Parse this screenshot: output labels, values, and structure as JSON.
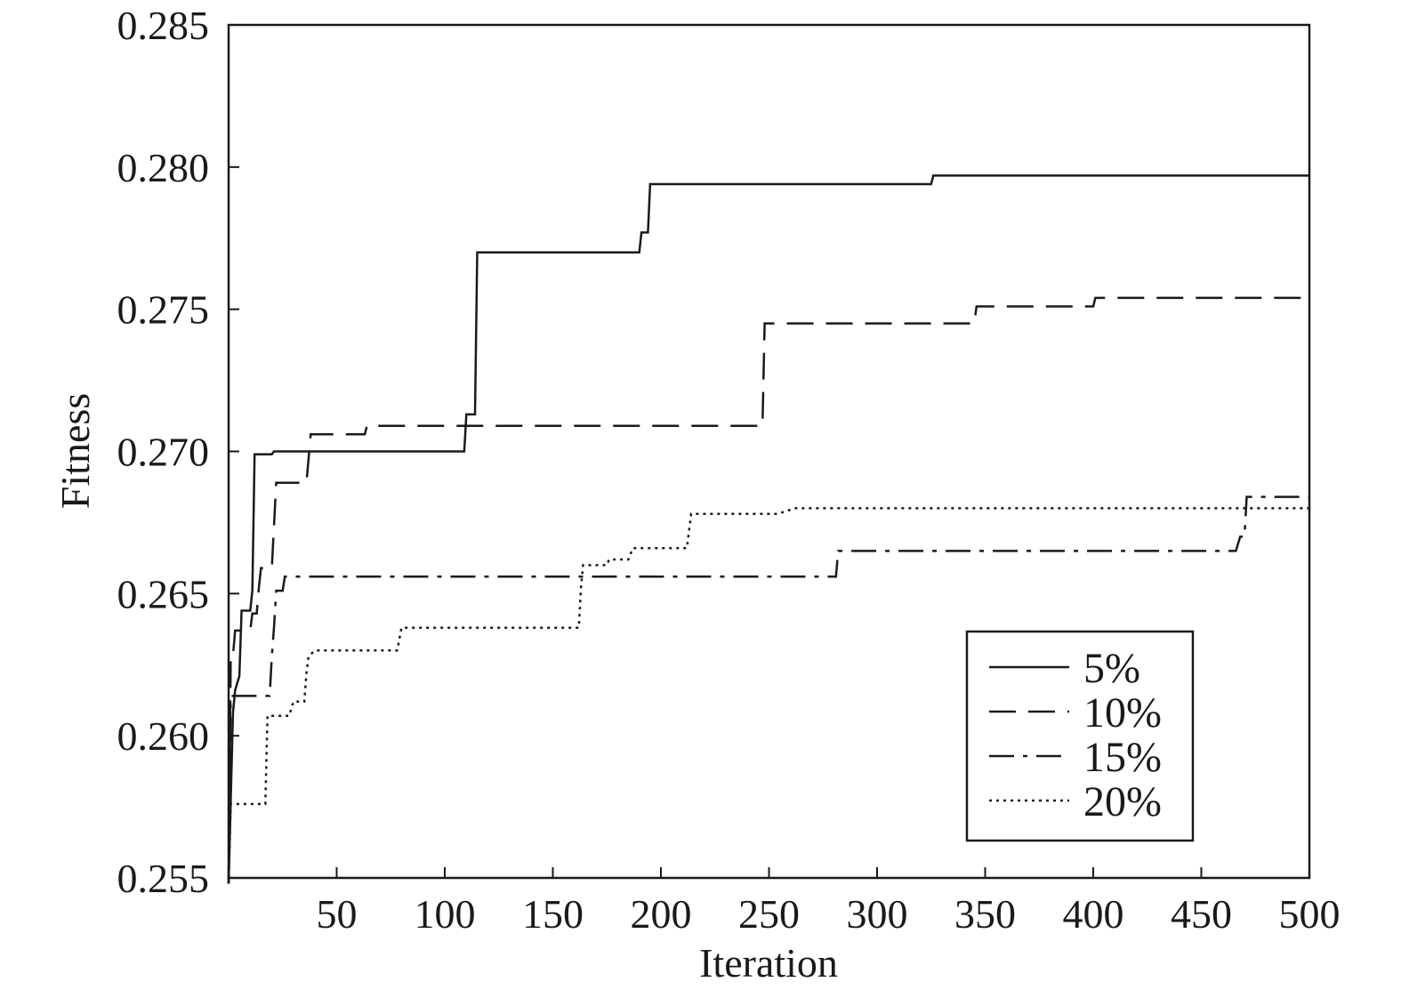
{
  "chart_data": {
    "type": "line",
    "title": "",
    "xlabel": "Iteration",
    "ylabel": "Fitness",
    "xlim": [
      0,
      500
    ],
    "ylim": [
      0.255,
      0.285
    ],
    "xticks": [
      50,
      100,
      150,
      200,
      250,
      300,
      350,
      400,
      450,
      500
    ],
    "yticks": [
      0.255,
      0.26,
      0.265,
      0.27,
      0.275,
      0.28,
      0.285
    ],
    "ytick_labels": [
      "0.255",
      "0.260",
      "0.265",
      "0.270",
      "0.275",
      "0.280",
      "0.285"
    ],
    "grid": false,
    "legend_position": "bottom-right",
    "series": [
      {
        "name": "5%",
        "style": "solid",
        "color": "#1a1a1a",
        "points": [
          [
            0,
            0.2548
          ],
          [
            2,
            0.2608
          ],
          [
            3,
            0.2616
          ],
          [
            5,
            0.2621
          ],
          [
            6,
            0.2644
          ],
          [
            10,
            0.2644
          ],
          [
            11,
            0.2651
          ],
          [
            12,
            0.2699
          ],
          [
            20,
            0.2699
          ],
          [
            21,
            0.27
          ],
          [
            109,
            0.27
          ],
          [
            110,
            0.2713
          ],
          [
            114,
            0.2713
          ],
          [
            115,
            0.277
          ],
          [
            190,
            0.277
          ],
          [
            191,
            0.2777
          ],
          [
            194,
            0.2777
          ],
          [
            195,
            0.2794
          ],
          [
            325,
            0.2794
          ],
          [
            326,
            0.2797
          ],
          [
            500,
            0.2797
          ]
        ]
      },
      {
        "name": "10%",
        "style": "dashed",
        "color": "#1a1a1a",
        "points": [
          [
            0,
            0.2548
          ],
          [
            1,
            0.2628
          ],
          [
            2,
            0.2628
          ],
          [
            3,
            0.2637
          ],
          [
            10,
            0.2637
          ],
          [
            11,
            0.2643
          ],
          [
            13,
            0.2643
          ],
          [
            14,
            0.2652
          ],
          [
            15,
            0.2659
          ],
          [
            20,
            0.2659
          ],
          [
            22,
            0.2689
          ],
          [
            36,
            0.2689
          ],
          [
            38,
            0.2706
          ],
          [
            63,
            0.2706
          ],
          [
            64,
            0.2709
          ],
          [
            247,
            0.2709
          ],
          [
            248,
            0.2745
          ],
          [
            345,
            0.2745
          ],
          [
            346,
            0.2751
          ],
          [
            400,
            0.2751
          ],
          [
            401,
            0.2754
          ],
          [
            500,
            0.2754
          ]
        ]
      },
      {
        "name": "15%",
        "style": "dashdot",
        "color": "#1a1a1a",
        "points": [
          [
            0,
            0.2548
          ],
          [
            1,
            0.2614
          ],
          [
            19,
            0.2614
          ],
          [
            20,
            0.2628
          ],
          [
            21,
            0.2638
          ],
          [
            22,
            0.2651
          ],
          [
            25,
            0.2651
          ],
          [
            26,
            0.2656
          ],
          [
            281,
            0.2656
          ],
          [
            282,
            0.2665
          ],
          [
            466,
            0.2665
          ],
          [
            468,
            0.267
          ],
          [
            470,
            0.267
          ],
          [
            471,
            0.2684
          ],
          [
            500,
            0.2684
          ]
        ]
      },
      {
        "name": "20%",
        "style": "dotted",
        "color": "#1a1a1a",
        "points": [
          [
            0,
            0.2548
          ],
          [
            1,
            0.2576
          ],
          [
            17,
            0.2576
          ],
          [
            18,
            0.2607
          ],
          [
            28,
            0.2607
          ],
          [
            30,
            0.2612
          ],
          [
            35,
            0.2612
          ],
          [
            36,
            0.2622
          ],
          [
            37,
            0.2628
          ],
          [
            40,
            0.263
          ],
          [
            78,
            0.263
          ],
          [
            80,
            0.2638
          ],
          [
            162,
            0.2638
          ],
          [
            163,
            0.2652
          ],
          [
            164,
            0.266
          ],
          [
            175,
            0.266
          ],
          [
            176,
            0.2662
          ],
          [
            185,
            0.2662
          ],
          [
            187,
            0.2666
          ],
          [
            212,
            0.2666
          ],
          [
            214,
            0.2678
          ],
          [
            254,
            0.2678
          ],
          [
            258,
            0.2679
          ],
          [
            262,
            0.268
          ],
          [
            500,
            0.268
          ]
        ]
      }
    ]
  }
}
